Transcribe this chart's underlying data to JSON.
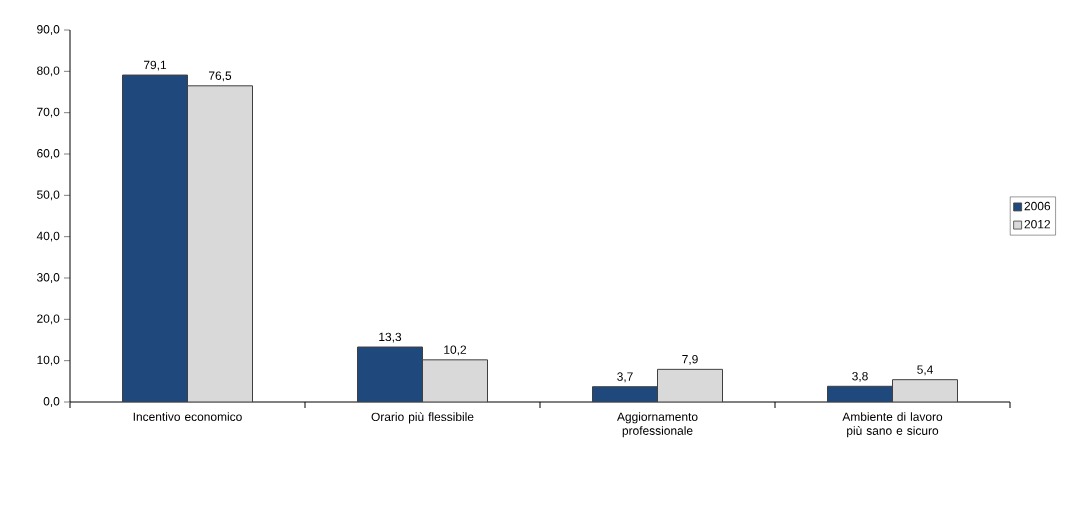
{
  "chart_data": {
    "type": "bar",
    "categories": [
      "Incentivo economico",
      "Orario più flessibile",
      "Aggiornamento professionale",
      "Ambiente di lavoro più sano e sicuro"
    ],
    "series": [
      {
        "name": "2006",
        "color": "#1f497d",
        "values": [
          79.1,
          13.3,
          3.7,
          3.8
        ],
        "value_labels": [
          "79,1",
          "13,3",
          "3,7",
          "3,8"
        ]
      },
      {
        "name": "2012",
        "color": "#d9d9d9",
        "values": [
          76.5,
          10.2,
          7.9,
          5.4
        ],
        "value_labels": [
          "76,5",
          "10,2",
          "7,9",
          "5,4"
        ]
      }
    ],
    "ylim": [
      0,
      90
    ],
    "yticks": [
      {
        "value": 0,
        "label": "0,0"
      },
      {
        "value": 10,
        "label": "10,0"
      },
      {
        "value": 20,
        "label": "20,0"
      },
      {
        "value": 30,
        "label": "30,0"
      },
      {
        "value": 40,
        "label": "40,0"
      },
      {
        "value": 50,
        "label": "50,0"
      },
      {
        "value": 60,
        "label": "60,0"
      },
      {
        "value": 70,
        "label": "70,0"
      },
      {
        "value": 80,
        "label": "80,0"
      },
      {
        "value": 90,
        "label": "90,0"
      }
    ],
    "grid": false,
    "legend": "right"
  }
}
